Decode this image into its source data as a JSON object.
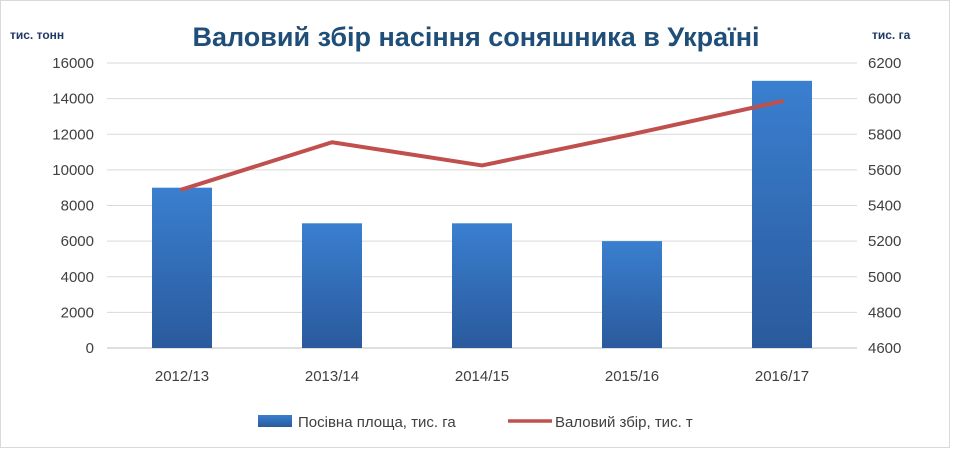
{
  "chart_data": {
    "type": "bar",
    "title": "Валовий збір насіння соняшника в Україні",
    "y_left_label": "тис. тонн",
    "y_right_label": "тис. га",
    "categories": [
      "2012/13",
      "2013/14",
      "2014/15",
      "2015/16",
      "2016/17"
    ],
    "y_left_ticks": [
      "0",
      "2000",
      "4000",
      "6000",
      "8000",
      "10000",
      "12000",
      "14000",
      "16000"
    ],
    "y_right_ticks": [
      "4600",
      "4800",
      "5000",
      "5200",
      "5400",
      "5600",
      "5800",
      "6000",
      "6200"
    ],
    "ylim_left": [
      0,
      16000
    ],
    "ylim_right": [
      4600,
      6200
    ],
    "series": [
      {
        "name": "Посівна площа, тис. га",
        "type": "bar",
        "axis": "left",
        "color": "#2e75b6",
        "values": [
          9000,
          7000,
          7000,
          6000,
          15000
        ]
      },
      {
        "name": "Валовий збір, тис. т",
        "type": "line",
        "axis": "right",
        "color": "#c0504d",
        "values": [
          5490,
          5755,
          5625,
          5800,
          5985
        ]
      }
    ],
    "grid": true,
    "legend": "bottom"
  }
}
